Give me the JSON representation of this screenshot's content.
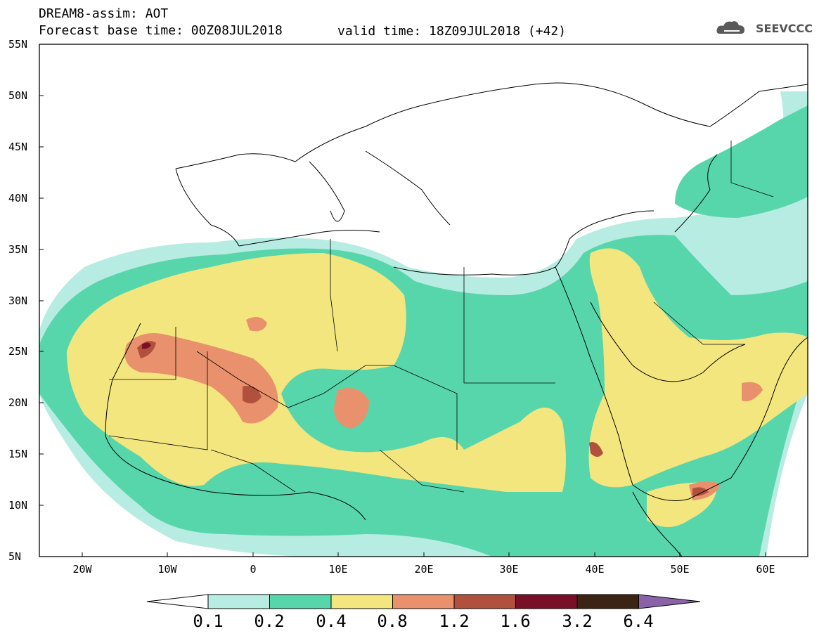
{
  "header": {
    "title": "DREAM8-assim: AOT",
    "base_time": "Forecast base time: 00Z08JUL2018",
    "valid_time": "valid time: 18Z09JUL2018 (+42)"
  },
  "logo": {
    "name": "cloud-logo-icon",
    "text": "SEEVCCC",
    "color": "#5a5a5a"
  },
  "map": {
    "lat_ticks": [
      "55N",
      "50N",
      "45N",
      "40N",
      "35N",
      "30N",
      "25N",
      "20N",
      "15N",
      "10N",
      "5N"
    ],
    "lon_ticks": [
      "20W",
      "10W",
      "0",
      "10E",
      "20E",
      "30E",
      "40E",
      "50E",
      "60E"
    ]
  },
  "colorbar": {
    "labels": [
      "0.1",
      "0.2",
      "0.4",
      "0.8",
      "1.2",
      "1.6",
      "3.2",
      "6.4"
    ],
    "colors": [
      "#ffffff",
      "#b7ece2",
      "#57d6ac",
      "#f4e67e",
      "#e8916c",
      "#b2503e",
      "#7a0f28",
      "#3c2414",
      "#8a62a8"
    ]
  },
  "colors": {
    "c1": "#b7ece2",
    "c2": "#57d6ac",
    "c3": "#f4e67e",
    "c4": "#e8916c",
    "c5": "#b2503e",
    "c6": "#7a0f28"
  }
}
